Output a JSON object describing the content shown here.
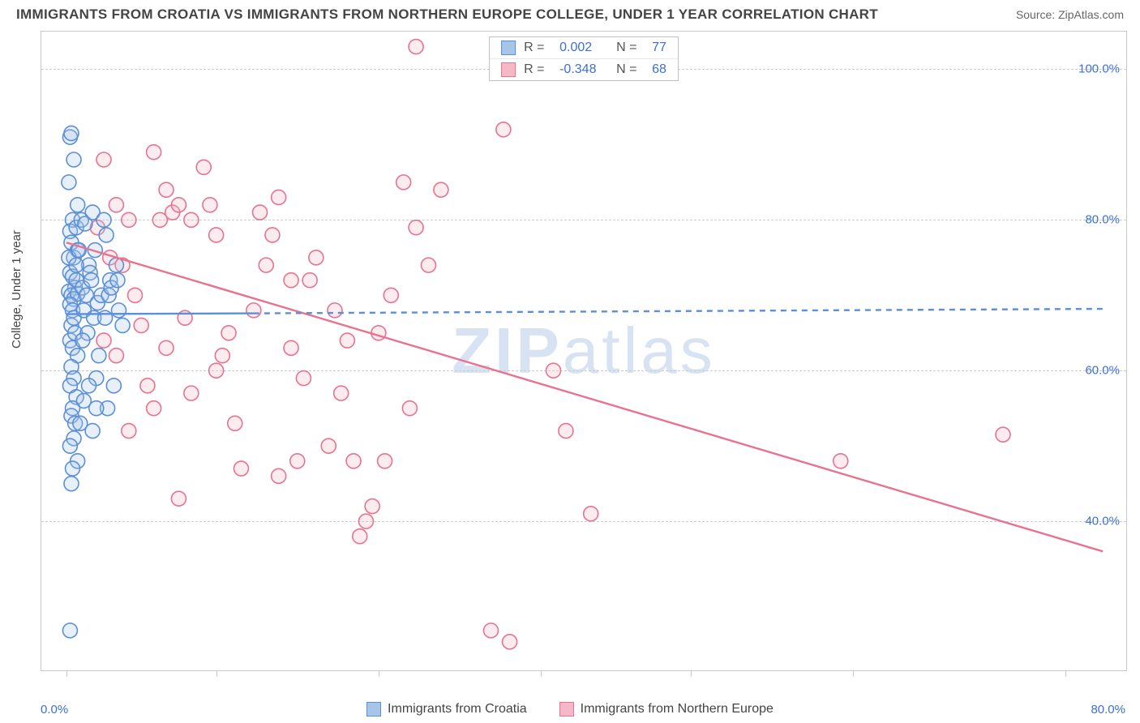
{
  "title": "IMMIGRANTS FROM CROATIA VS IMMIGRANTS FROM NORTHERN EUROPE COLLEGE, UNDER 1 YEAR CORRELATION CHART",
  "source": "Source: ZipAtlas.com",
  "ylabel": "College, Under 1 year",
  "watermark_bold": "ZIP",
  "watermark_rest": "atlas",
  "chart": {
    "type": "scatter",
    "background_color": "#ffffff",
    "border_color": "#c8c8c8",
    "grid_color": "#cccccc",
    "tick_color": "#3b6fd6",
    "xlim": [
      -2,
      85
    ],
    "ylim": [
      20,
      105
    ],
    "yticks": [
      40,
      60,
      80,
      100
    ],
    "ytick_labels": [
      "40.0%",
      "60.0%",
      "80.0%",
      "100.0%"
    ],
    "xticks": [
      0,
      12,
      25,
      38,
      50,
      63,
      80
    ],
    "xtick_labels": {
      "0": "0.0%",
      "80": "80.0%"
    },
    "marker_radius": 9,
    "marker_stroke_width": 1.6,
    "marker_fill_opacity": 0.28,
    "trend_line_width": 2.4,
    "series": [
      {
        "name": "Immigrants from Croatia",
        "color": "#5b8fd6",
        "fill": "#a8c5e8",
        "stats": {
          "R": "0.002",
          "N": "77"
        },
        "trend": {
          "x1": 0,
          "y1": 67.5,
          "x2": 15,
          "y2": 67.6,
          "dashed_continue_x": 83,
          "dashed_continue_y": 68.2
        },
        "points": [
          [
            0.3,
            91
          ],
          [
            0.4,
            91.5
          ],
          [
            0.6,
            88
          ],
          [
            0.9,
            82
          ],
          [
            0.2,
            85
          ],
          [
            0.5,
            80
          ],
          [
            0.3,
            78.5
          ],
          [
            0.8,
            79
          ],
          [
            0.4,
            77
          ],
          [
            0.6,
            75
          ],
          [
            0.9,
            76
          ],
          [
            0.3,
            73
          ],
          [
            0.5,
            72.5
          ],
          [
            0.7,
            71
          ],
          [
            0.2,
            70.5
          ],
          [
            0.4,
            70
          ],
          [
            0.6,
            69.5
          ],
          [
            0.9,
            70.2
          ],
          [
            0.3,
            68.8
          ],
          [
            0.5,
            68
          ],
          [
            0.8,
            72
          ],
          [
            0.4,
            66
          ],
          [
            0.6,
            67
          ],
          [
            0.3,
            64
          ],
          [
            0.7,
            65
          ],
          [
            0.5,
            63
          ],
          [
            0.9,
            62
          ],
          [
            0.4,
            60.5
          ],
          [
            0.6,
            59
          ],
          [
            0.3,
            58
          ],
          [
            0.8,
            56.5
          ],
          [
            0.5,
            55
          ],
          [
            0.4,
            54
          ],
          [
            0.7,
            53
          ],
          [
            0.6,
            51
          ],
          [
            0.3,
            50
          ],
          [
            0.9,
            48
          ],
          [
            0.5,
            47
          ],
          [
            0.4,
            45
          ],
          [
            0.3,
            25.5
          ],
          [
            1.2,
            80
          ],
          [
            1.5,
            79.5
          ],
          [
            1.8,
            74
          ],
          [
            1.3,
            71
          ],
          [
            1.6,
            70
          ],
          [
            1.9,
            73
          ],
          [
            1.4,
            68
          ],
          [
            1.7,
            65
          ],
          [
            2.1,
            81
          ],
          [
            2.3,
            76
          ],
          [
            2.0,
            72
          ],
          [
            2.5,
            69
          ],
          [
            2.2,
            67
          ],
          [
            2.8,
            70
          ],
          [
            2.4,
            59
          ],
          [
            2.6,
            62
          ],
          [
            3.0,
            80
          ],
          [
            3.2,
            78
          ],
          [
            3.5,
            72
          ],
          [
            3.1,
            67
          ],
          [
            3.4,
            70
          ],
          [
            3.8,
            58
          ],
          [
            3.3,
            55
          ],
          [
            3.6,
            71
          ],
          [
            4.0,
            74
          ],
          [
            4.2,
            68
          ],
          [
            4.5,
            66
          ],
          [
            4.1,
            72
          ],
          [
            1.1,
            53
          ],
          [
            1.4,
            56
          ],
          [
            1.8,
            58
          ],
          [
            2.1,
            52
          ],
          [
            2.4,
            55
          ],
          [
            0.2,
            75
          ],
          [
            0.8,
            74
          ],
          [
            1.0,
            76
          ],
          [
            1.3,
            64
          ]
        ]
      },
      {
        "name": "Immigrants from Northern Europe",
        "color": "#e8738f",
        "fill": "#f5b8c6",
        "stats": {
          "R": "-0.348",
          "N": "68"
        },
        "trend": {
          "x1": 0,
          "y1": 77,
          "x2": 83,
          "y2": 36
        },
        "points": [
          [
            3,
            88
          ],
          [
            4,
            82
          ],
          [
            5,
            80
          ],
          [
            2.5,
            79
          ],
          [
            3.5,
            75
          ],
          [
            4.5,
            74
          ],
          [
            5.5,
            70
          ],
          [
            6,
            66
          ],
          [
            7,
            89
          ],
          [
            8,
            84
          ],
          [
            7.5,
            80
          ],
          [
            8.5,
            81
          ],
          [
            9,
            82
          ],
          [
            10,
            80
          ],
          [
            9.5,
            67
          ],
          [
            8,
            63
          ],
          [
            10,
            57
          ],
          [
            9,
            43
          ],
          [
            11,
            87
          ],
          [
            12,
            78
          ],
          [
            11.5,
            82
          ],
          [
            13,
            65
          ],
          [
            12,
            60
          ],
          [
            13.5,
            53
          ],
          [
            14,
            47
          ],
          [
            12.5,
            62
          ],
          [
            15,
            68
          ],
          [
            16,
            74
          ],
          [
            15.5,
            81
          ],
          [
            17,
            83
          ],
          [
            16.5,
            78
          ],
          [
            18,
            72
          ],
          [
            17,
            46
          ],
          [
            18.5,
            48
          ],
          [
            19,
            59
          ],
          [
            18,
            63
          ],
          [
            20,
            75
          ],
          [
            19.5,
            72
          ],
          [
            21,
            50
          ],
          [
            22,
            57
          ],
          [
            21.5,
            68
          ],
          [
            23,
            48
          ],
          [
            22.5,
            64
          ],
          [
            24,
            40
          ],
          [
            23.5,
            38
          ],
          [
            24.5,
            42
          ],
          [
            25,
            65
          ],
          [
            26,
            70
          ],
          [
            25.5,
            48
          ],
          [
            27,
            85
          ],
          [
            28,
            103
          ],
          [
            28,
            79
          ],
          [
            29,
            74
          ],
          [
            27.5,
            55
          ],
          [
            30,
            84
          ],
          [
            35,
            92
          ],
          [
            35.5,
            24
          ],
          [
            34,
            25.5
          ],
          [
            42,
            41
          ],
          [
            40,
            52
          ],
          [
            39,
            60
          ],
          [
            62,
            48
          ],
          [
            75,
            51.5
          ],
          [
            7,
            55
          ],
          [
            6.5,
            58
          ],
          [
            5,
            52
          ],
          [
            4,
            62
          ],
          [
            3,
            64
          ]
        ]
      }
    ]
  },
  "legend": {
    "series1_label": "Immigrants from Croatia",
    "series2_label": "Immigrants from Northern Europe"
  },
  "stats_legend": {
    "r_label": "R =",
    "n_label": "N ="
  }
}
